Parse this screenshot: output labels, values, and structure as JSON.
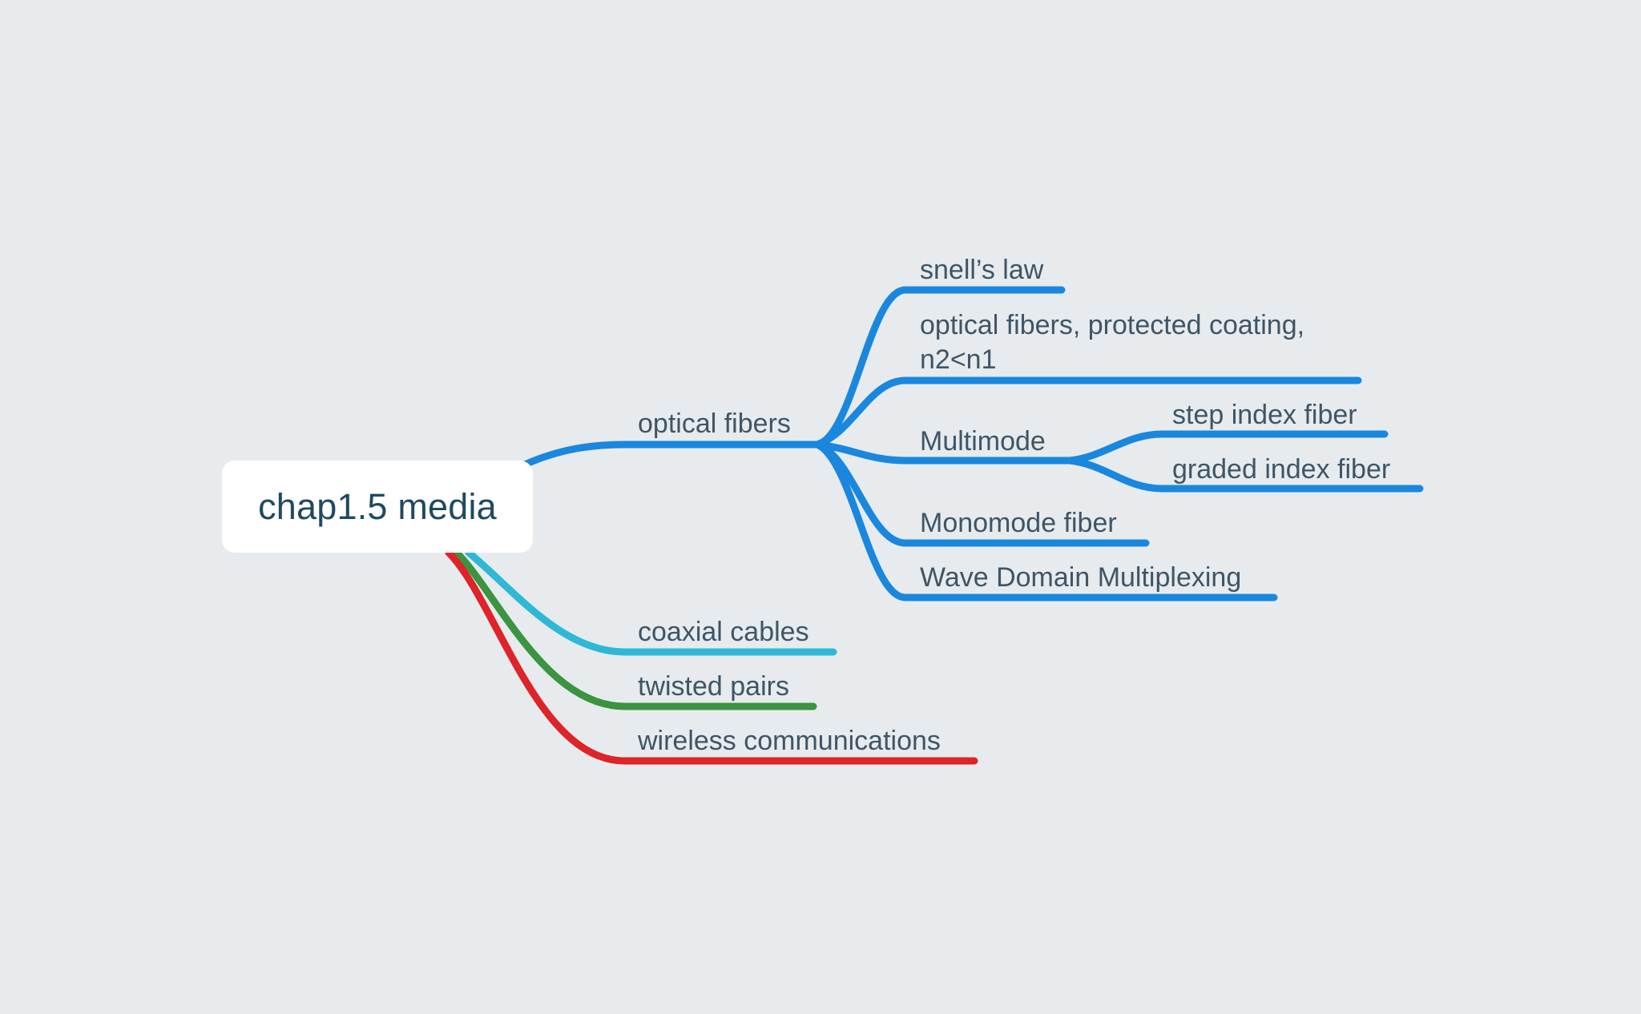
{
  "central": {
    "label": "chap1.5 media"
  },
  "branches": {
    "optical_fibers": {
      "label": "optical fibers",
      "color": "#1a87de",
      "children": {
        "snells_law": "snell’s law",
        "coating_line1": "optical fibers, protected coating,",
        "coating_line2": "n2<n1",
        "multimode": {
          "label": "Multimode",
          "children": {
            "step_index": "step index fiber",
            "graded_index": "graded index fiber"
          }
        },
        "monomode": "Monomode fiber",
        "wdm": "Wave Domain Multiplexing"
      }
    },
    "coaxial_cables": {
      "label": "coaxial cables",
      "color": "#2fb8d6"
    },
    "twisted_pairs": {
      "label": "twisted pairs",
      "color": "#3a9440"
    },
    "wireless": {
      "label": "wireless communications",
      "color": "#de2329"
    }
  }
}
